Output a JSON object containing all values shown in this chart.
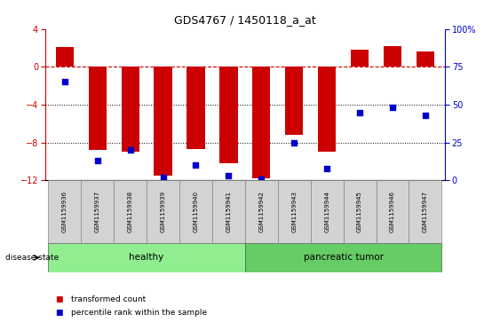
{
  "title": "GDS4767 / 1450118_a_at",
  "samples": [
    "GSM1159936",
    "GSM1159937",
    "GSM1159938",
    "GSM1159939",
    "GSM1159940",
    "GSM1159941",
    "GSM1159942",
    "GSM1159943",
    "GSM1159944",
    "GSM1159945",
    "GSM1159946",
    "GSM1159947"
  ],
  "bar_values": [
    2.1,
    -8.8,
    -9.0,
    -11.5,
    -8.7,
    -10.2,
    -11.8,
    -7.2,
    -9.0,
    1.8,
    2.2,
    1.6
  ],
  "percentile_values": [
    65,
    13,
    20,
    2,
    10,
    3,
    1,
    25,
    8,
    45,
    48,
    43
  ],
  "ylim_left": [
    -12,
    4
  ],
  "ylim_right": [
    0,
    100
  ],
  "bar_color": "#cc0000",
  "dot_color": "#0000cc",
  "zero_line_color": "#cc0000",
  "grid_color": "#000000",
  "healthy_color": "#90ee90",
  "tumor_color": "#66cc66",
  "healthy_samples": 6,
  "tumor_samples": 6,
  "disease_label_healthy": "healthy",
  "disease_label_tumor": "pancreatic tumor",
  "legend_bar_label": "transformed count",
  "legend_dot_label": "percentile rank within the sample",
  "disease_state_label": "disease state",
  "yticks_left": [
    -12,
    -8,
    -4,
    0,
    4
  ],
  "yticks_right": [
    0,
    25,
    50,
    75,
    100
  ],
  "right_tick_labels": [
    "0",
    "25",
    "50",
    "75",
    "100%"
  ]
}
